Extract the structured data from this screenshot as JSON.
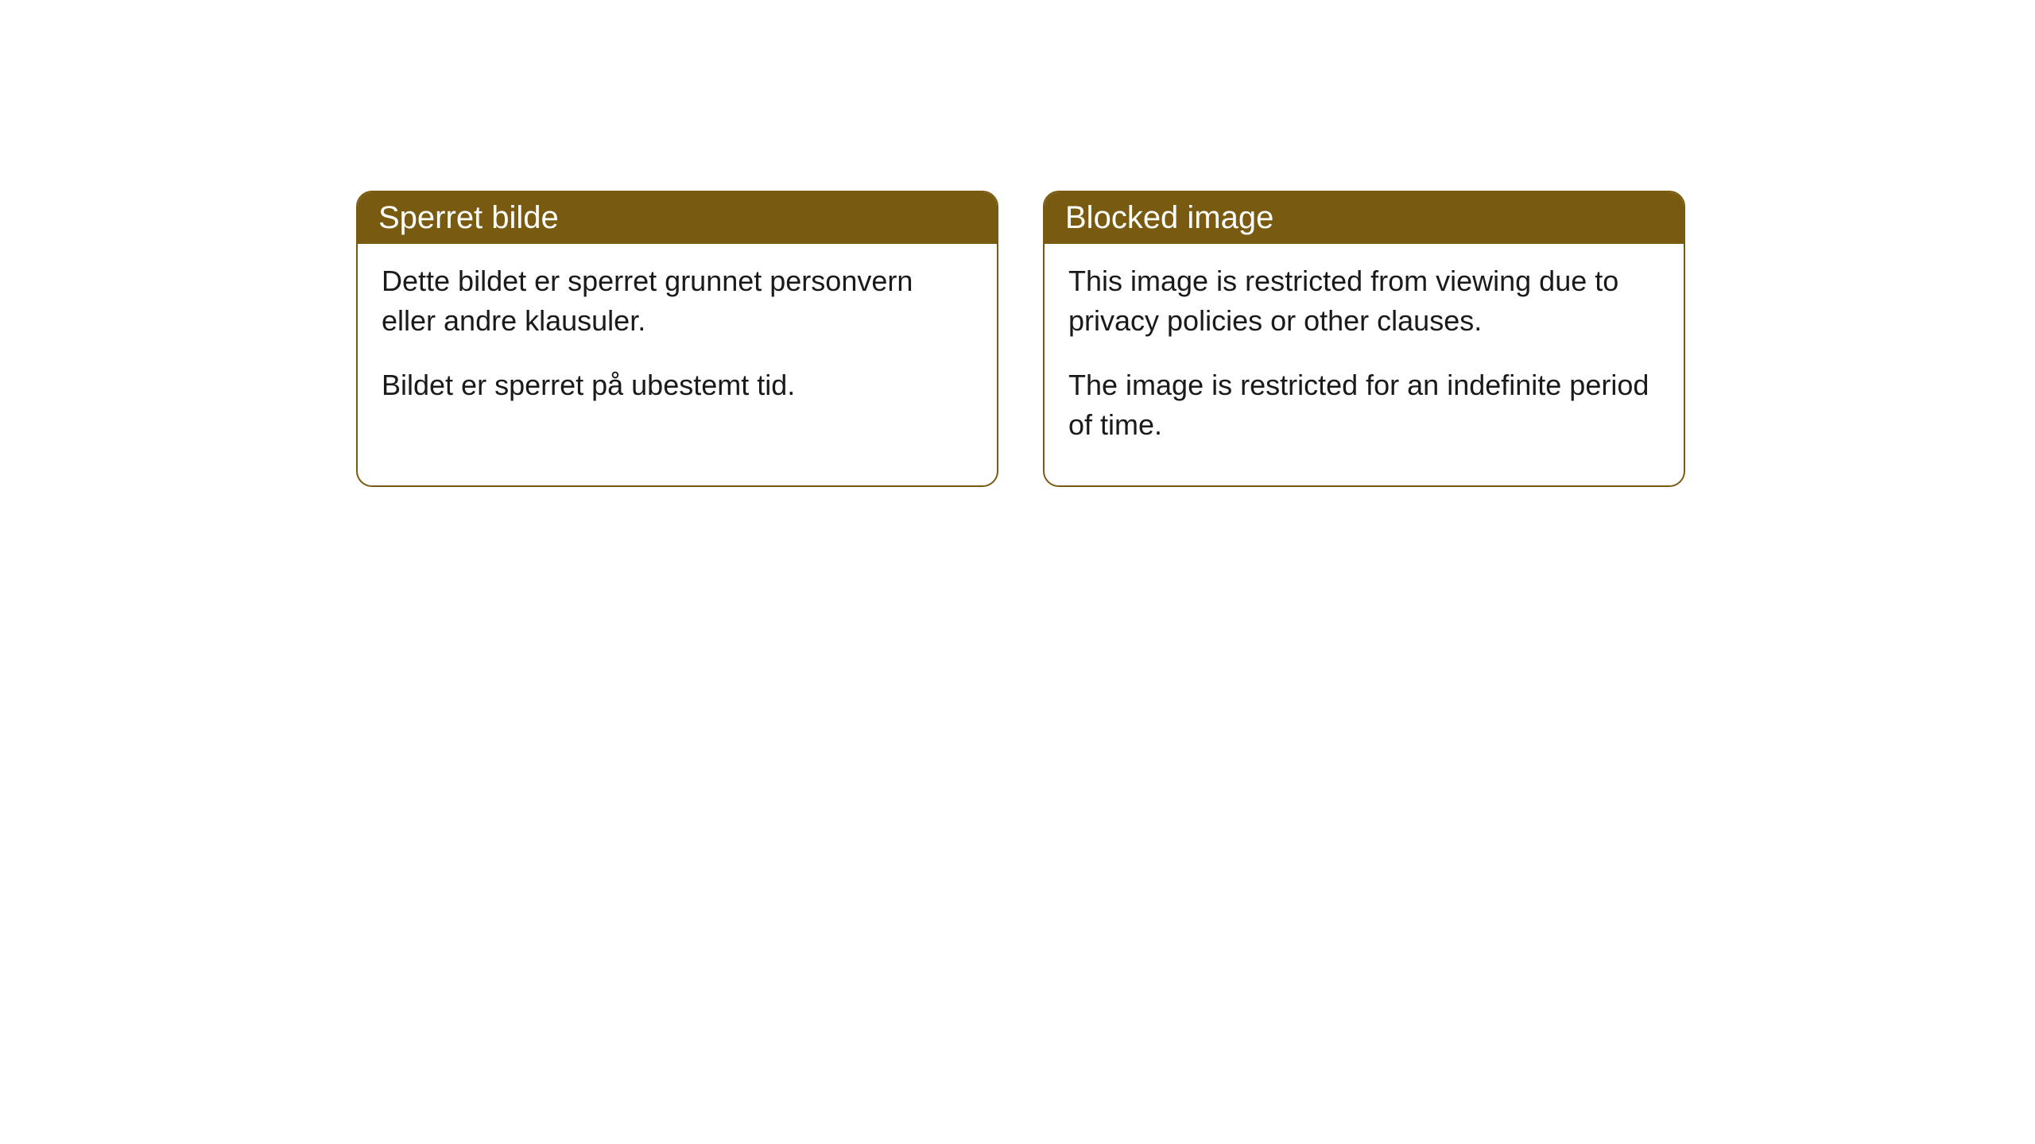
{
  "cards": [
    {
      "title": "Sperret bilde",
      "paragraph1": "Dette bildet er sperret grunnet personvern eller andre klausuler.",
      "paragraph2": "Bildet er sperret på ubestemt tid."
    },
    {
      "title": "Blocked image",
      "paragraph1": "This image is restricted from viewing due to privacy policies or other clauses.",
      "paragraph2": "The image is restricted for an indefinite period of time."
    }
  ],
  "style": {
    "header_bg_color": "#785b10",
    "header_text_color": "#ffffff",
    "border_color": "#785b10",
    "body_bg_color": "#ffffff",
    "body_text_color": "#1a1a1a",
    "header_fontsize": 40,
    "body_fontsize": 36,
    "border_radius": 20,
    "border_width": 2
  }
}
